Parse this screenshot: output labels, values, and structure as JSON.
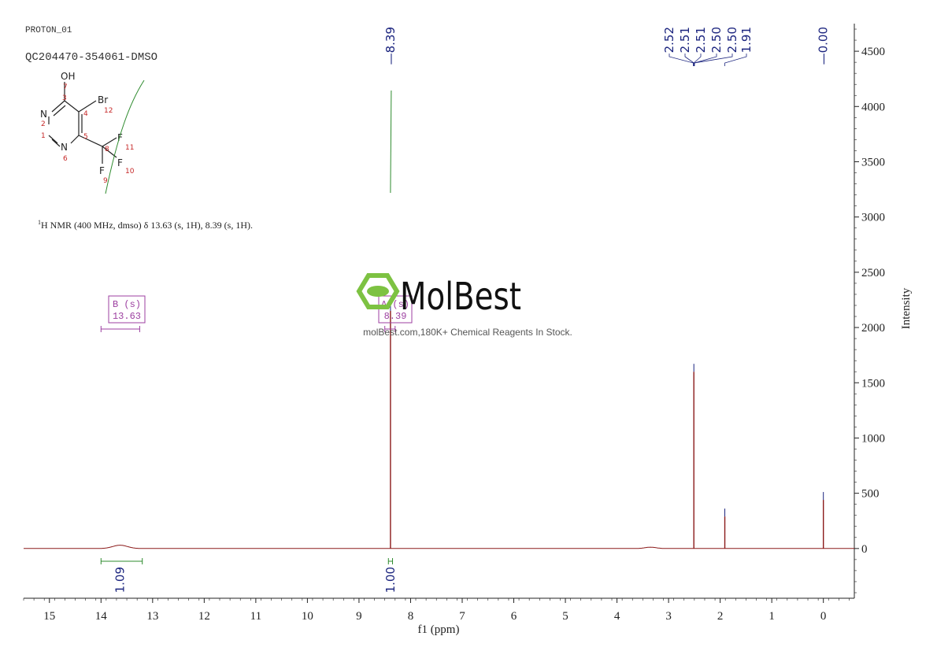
{
  "header": {
    "experiment": "PROTON_01",
    "sample": "QC204470-354061-DMSO"
  },
  "structure": {
    "atoms": [
      "OH",
      "Br",
      "N",
      "N",
      "F",
      "F",
      "F"
    ],
    "atom_numbers": [
      "7",
      "3",
      "4",
      "12",
      "2",
      "1",
      "5",
      "8",
      "11",
      "6",
      "10",
      "9"
    ]
  },
  "nmr_description": {
    "sup": "1",
    "text": "H NMR (400 MHz, dmso) δ 13.63 (s, 1H), 8.39 (s, 1H)."
  },
  "watermark": {
    "brand": "MolBest",
    "tagline": "molBest.com,180K+ Chemical Reagents In Stock."
  },
  "colors": {
    "spectrum": "#8b1a1a",
    "peak_labels": "#1a237e",
    "integral": "#2e8b2e",
    "multiplet_box": "#9c3fa0",
    "axis": "#222222",
    "watermark_green": "#7dc242"
  },
  "chart_data": {
    "type": "line",
    "xlabel": "f1 (ppm)",
    "ylabel": "Intensity",
    "xlim": [
      15.5,
      -0.6
    ],
    "ylim": [
      -450,
      4750
    ],
    "x_ticks": [
      "15",
      "14",
      "13",
      "12",
      "11",
      "10",
      "9",
      "8",
      "7",
      "6",
      "5",
      "4",
      "3",
      "2",
      "1",
      "0"
    ],
    "y_ticks": [
      "4500",
      "4000",
      "3500",
      "3000",
      "2500",
      "2000",
      "1500",
      "1000",
      "500",
      "0"
    ],
    "peak_labels": [
      "8.39",
      "2.52",
      "2.51",
      "2.51",
      "2.50",
      "2.50",
      "1.91",
      "0.00"
    ],
    "peaks": [
      {
        "ppm": 8.39,
        "intensity": 2150
      },
      {
        "ppm": 2.51,
        "intensity": 1600
      },
      {
        "ppm": 1.91,
        "intensity": 290
      },
      {
        "ppm": 0.0,
        "intensity": 440
      }
    ],
    "broad_peaks": [
      {
        "ppm": 13.63,
        "intensity": 30
      }
    ],
    "multiplets": [
      {
        "label": "B (s)",
        "value": "13.63",
        "range": [
          14.0,
          13.25
        ]
      },
      {
        "label": "A (s)",
        "value": "8.39",
        "range": [
          8.5,
          8.3
        ]
      }
    ],
    "integrals": [
      {
        "value": "1.09",
        "range": [
          14.0,
          13.2
        ],
        "center": 13.63
      },
      {
        "value": "1.00",
        "range": [
          8.43,
          8.35
        ],
        "center": 8.39
      }
    ]
  }
}
